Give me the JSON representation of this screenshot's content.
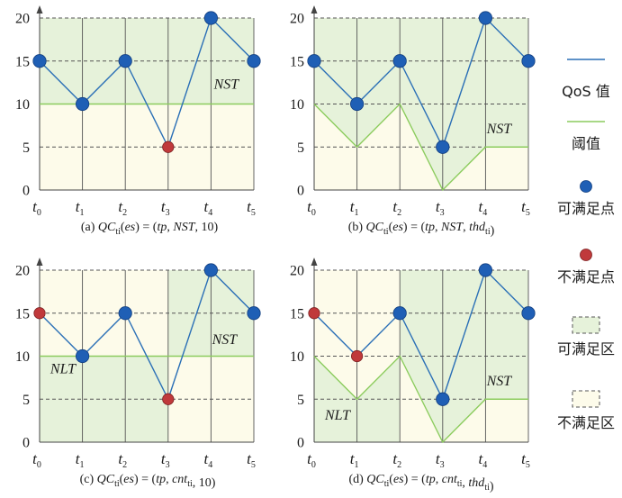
{
  "colors": {
    "qos_line": "#2a6fb6",
    "threshold_line": "#8ccc5e",
    "satisfy_point": "#1f5fb5",
    "unsatisfy_point": "#c0393b",
    "satisfy_zone": "#e6f2da",
    "unsatisfy_zone": "#fdfbea",
    "grid": "#555555"
  },
  "legend": {
    "qos_label": "QoS 值",
    "threshold_label": "阈值",
    "satisfy_point_label": "可满足点",
    "unsatisfy_point_label": "不满足点",
    "satisfy_zone_label": "可满足区",
    "unsatisfy_zone_label": "不满足区"
  },
  "chart_data": [
    {
      "type": "line",
      "caption": "(a) QC_ti(es) = (tp, NST, 10)",
      "x": [
        "t0",
        "t1",
        "t2",
        "t3",
        "t4",
        "t5"
      ],
      "ylim": [
        0,
        20
      ],
      "yticks": [
        0,
        5,
        10,
        15,
        20
      ],
      "qos": [
        15,
        10,
        15,
        5,
        20,
        15
      ],
      "threshold": [
        10,
        10,
        10,
        10,
        10,
        10
      ],
      "satisfied": [
        true,
        true,
        true,
        false,
        true,
        true
      ],
      "mode": "NST",
      "zone_labels": [
        "NST"
      ]
    },
    {
      "type": "line",
      "caption": "(b) QC_ti(es) = (tp, NST, thd_ti)",
      "x": [
        "t0",
        "t1",
        "t2",
        "t3",
        "t4",
        "t5"
      ],
      "ylim": [
        0,
        20
      ],
      "yticks": [
        0,
        5,
        10,
        15,
        20
      ],
      "qos": [
        15,
        10,
        15,
        5,
        20,
        15
      ],
      "threshold": [
        10,
        5,
        10,
        0,
        5,
        5
      ],
      "satisfied": [
        true,
        true,
        true,
        true,
        true,
        true
      ],
      "mode": "NST",
      "zone_labels": [
        "NST"
      ]
    },
    {
      "type": "line",
      "caption": "(c) QC_ti(es) = (tp, cnt_ti, 10)",
      "x": [
        "t0",
        "t1",
        "t2",
        "t3",
        "t4",
        "t5"
      ],
      "ylim": [
        0,
        20
      ],
      "yticks": [
        0,
        5,
        10,
        15,
        20
      ],
      "qos": [
        15,
        10,
        15,
        5,
        20,
        15
      ],
      "threshold": [
        10,
        10,
        10,
        10,
        10,
        10
      ],
      "satisfied": [
        false,
        true,
        true,
        false,
        true,
        true
      ],
      "mode": "cnt",
      "cnt": [
        "NLT",
        "NLT",
        "NLT",
        "NST",
        "NST"
      ],
      "zone_labels": [
        "NST",
        "NLT"
      ]
    },
    {
      "type": "line",
      "caption": "(d) QC_ti(es) = (tp, cnt_ti, thd_ti)",
      "x": [
        "t0",
        "t1",
        "t2",
        "t3",
        "t4",
        "t5"
      ],
      "ylim": [
        0,
        20
      ],
      "yticks": [
        0,
        5,
        10,
        15,
        20
      ],
      "qos": [
        15,
        10,
        15,
        5,
        20,
        15
      ],
      "threshold": [
        10,
        5,
        10,
        0,
        5,
        5
      ],
      "satisfied": [
        false,
        false,
        true,
        true,
        true,
        true
      ],
      "mode": "cnt",
      "cnt": [
        "NLT",
        "NLT",
        "NST",
        "NST",
        "NST"
      ],
      "zone_labels": [
        "NST",
        "NLT"
      ]
    }
  ]
}
